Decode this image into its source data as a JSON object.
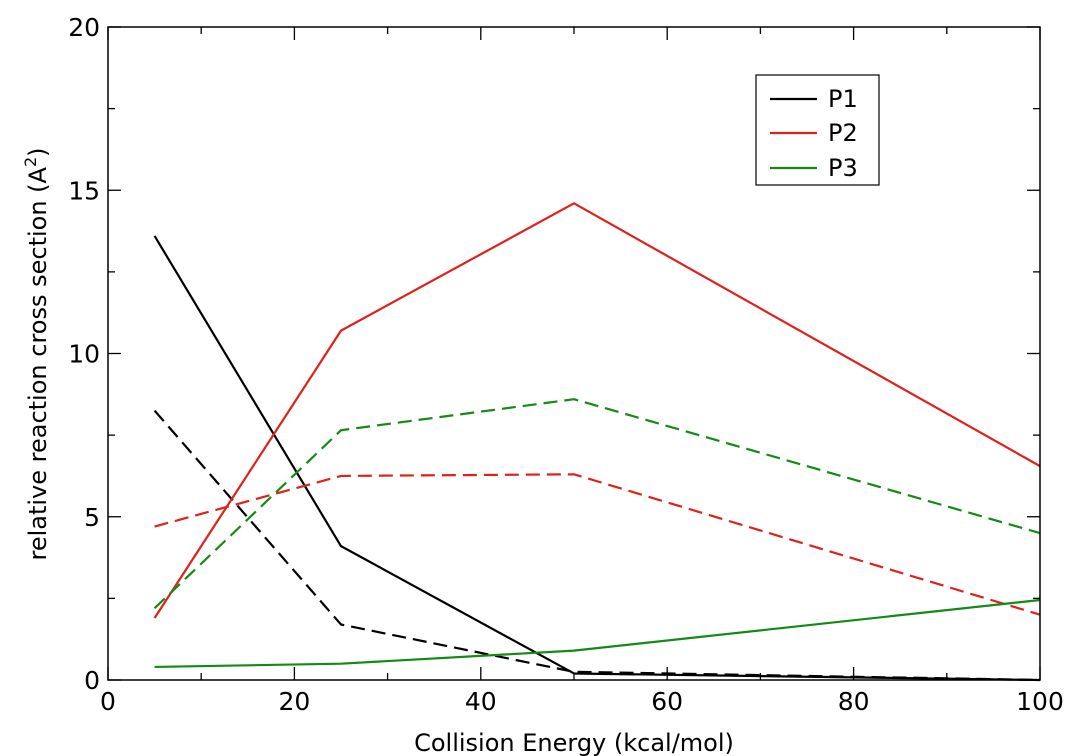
{
  "chart_data": {
    "type": "line",
    "title": "",
    "xlabel": "Collision Energy (kcal/mol)",
    "ylabel": "relative reaction cross section (A",
    "ylabel_superscript": "2",
    "ylabel_suffix": ")",
    "xlim": [
      0,
      100
    ],
    "ylim": [
      0,
      20
    ],
    "xticks": [
      0,
      20,
      40,
      60,
      80,
      100
    ],
    "yticks": [
      0,
      5,
      10,
      15,
      20
    ],
    "x_minor_step": 10,
    "y_minor_step": 2.5,
    "grid": false,
    "legend_position": "top-right",
    "legend": [
      {
        "label": "P1",
        "color": "#000000"
      },
      {
        "label": "P2",
        "color": "#e0201b"
      },
      {
        "label": "P3",
        "color": "#138a13"
      }
    ],
    "series": [
      {
        "group": "P1",
        "style": "solid",
        "color": "#000000",
        "x": [
          5,
          25,
          50,
          100
        ],
        "y": [
          13.6,
          4.1,
          0.2,
          0.0
        ]
      },
      {
        "group": "P1",
        "style": "dashed",
        "color": "#000000",
        "x": [
          5,
          25,
          50,
          100
        ],
        "y": [
          8.25,
          1.7,
          0.25,
          0.0
        ]
      },
      {
        "group": "P2",
        "style": "solid",
        "color": "#e0201b",
        "x": [
          5,
          25,
          50,
          100
        ],
        "y": [
          1.9,
          10.7,
          14.6,
          6.55
        ]
      },
      {
        "group": "P2",
        "style": "dashed",
        "color": "#e0201b",
        "x": [
          5,
          25,
          50,
          100
        ],
        "y": [
          4.7,
          6.25,
          6.3,
          2.0
        ]
      },
      {
        "group": "P3",
        "style": "solid",
        "color": "#138a13",
        "x": [
          5,
          25,
          50,
          100
        ],
        "y": [
          0.4,
          0.5,
          0.9,
          2.45
        ]
      },
      {
        "group": "P3",
        "style": "dashed",
        "color": "#138a13",
        "x": [
          5,
          25,
          50,
          100
        ],
        "y": [
          2.2,
          7.65,
          8.6,
          4.5
        ]
      }
    ]
  }
}
